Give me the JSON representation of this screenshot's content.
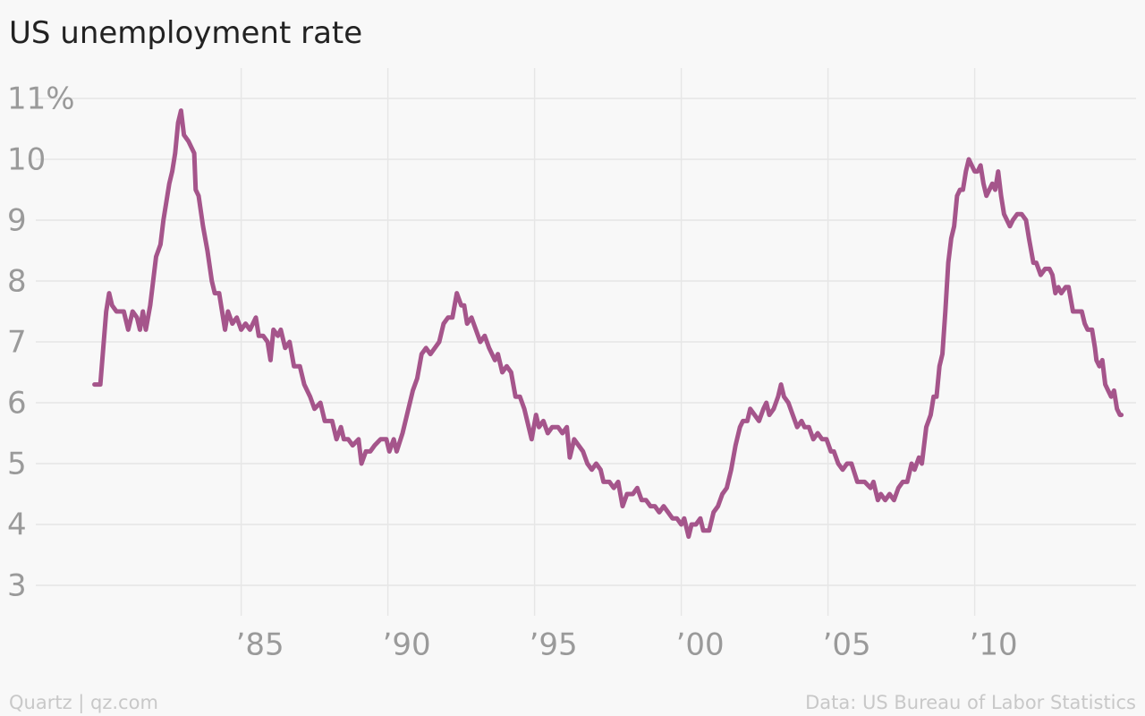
{
  "chart_data": {
    "type": "line",
    "title": "US unemployment rate",
    "credit": "Quartz | qz.com",
    "source": "Data: US Bureau of Labor Statistics",
    "color": "#a5558b",
    "grid": true,
    "xlim": [
      1978,
      2015.5
    ],
    "ylim": [
      2.5,
      11.5
    ],
    "xticks": [
      {
        "value": 1985,
        "label": "’85"
      },
      {
        "value": 1990,
        "label": "’90"
      },
      {
        "value": 1995,
        "label": "’95"
      },
      {
        "value": 2000,
        "label": "’00"
      },
      {
        "value": 2005,
        "label": "’05"
      },
      {
        "value": 2010,
        "label": "’10"
      }
    ],
    "yticks": [
      3,
      4,
      5,
      6,
      7,
      8,
      9,
      10,
      {
        "value": 11,
        "label": "11%"
      }
    ],
    "x": [
      1980.0,
      1980.2,
      1980.3,
      1980.4,
      1980.5,
      1980.6,
      1980.75,
      1981.0,
      1981.15,
      1981.3,
      1981.45,
      1981.55,
      1981.65,
      1981.75,
      1981.9,
      1982.0,
      1982.1,
      1982.25,
      1982.35,
      1982.45,
      1982.55,
      1982.65,
      1982.75,
      1982.85,
      1982.95,
      1983.05,
      1983.2,
      1983.4,
      1983.45,
      1983.55,
      1983.7,
      1983.85,
      1984.0,
      1984.1,
      1984.25,
      1984.35,
      1984.45,
      1984.55,
      1984.7,
      1984.85,
      1985.0,
      1985.15,
      1985.3,
      1985.5,
      1985.6,
      1985.75,
      1985.9,
      1986.0,
      1986.1,
      1986.25,
      1986.35,
      1986.5,
      1986.65,
      1986.8,
      1987.0,
      1987.15,
      1987.35,
      1987.5,
      1987.7,
      1987.85,
      1988.1,
      1988.25,
      1988.4,
      1988.5,
      1988.65,
      1988.8,
      1989.0,
      1989.1,
      1989.25,
      1989.4,
      1989.55,
      1989.75,
      1989.95,
      1990.05,
      1990.2,
      1990.3,
      1990.5,
      1990.7,
      1990.85,
      1991.0,
      1991.15,
      1991.3,
      1991.45,
      1991.6,
      1991.75,
      1991.9,
      1992.05,
      1992.2,
      1992.35,
      1992.5,
      1992.6,
      1992.7,
      1992.85,
      1993.0,
      1993.15,
      1993.3,
      1993.45,
      1993.65,
      1993.75,
      1993.9,
      1994.05,
      1994.2,
      1994.35,
      1994.5,
      1994.65,
      1994.8,
      1994.9,
      1995.05,
      1995.15,
      1995.3,
      1995.45,
      1995.6,
      1995.8,
      1995.95,
      1996.1,
      1996.2,
      1996.35,
      1996.5,
      1996.65,
      1996.8,
      1996.95,
      1997.1,
      1997.25,
      1997.35,
      1997.55,
      1997.7,
      1997.85,
      1998.0,
      1998.15,
      1998.35,
      1998.5,
      1998.65,
      1998.8,
      1998.95,
      1999.1,
      1999.25,
      1999.4,
      1999.55,
      1999.7,
      1999.85,
      2000.0,
      2000.1,
      2000.25,
      2000.35,
      2000.5,
      2000.65,
      2000.75,
      2000.95,
      2001.1,
      2001.25,
      2001.4,
      2001.55,
      2001.7,
      2001.85,
      2002.0,
      2002.1,
      2002.25,
      2002.35,
      2002.5,
      2002.65,
      2002.8,
      2002.9,
      2003.0,
      2003.15,
      2003.3,
      2003.4,
      2003.5,
      2003.65,
      2003.8,
      2003.95,
      2004.1,
      2004.2,
      2004.35,
      2004.5,
      2004.65,
      2004.8,
      2004.95,
      2005.1,
      2005.2,
      2005.35,
      2005.5,
      2005.65,
      2005.8,
      2006.0,
      2006.1,
      2006.25,
      2006.45,
      2006.55,
      2006.7,
      2006.8,
      2006.95,
      2007.1,
      2007.25,
      2007.4,
      2007.55,
      2007.7,
      2007.85,
      2007.95,
      2008.1,
      2008.2,
      2008.35,
      2008.5,
      2008.6,
      2008.7,
      2008.8,
      2008.9,
      2009.0,
      2009.1,
      2009.2,
      2009.3,
      2009.4,
      2009.5,
      2009.6,
      2009.7,
      2009.8,
      2009.9,
      2010.0,
      2010.1,
      2010.2,
      2010.3,
      2010.4,
      2010.5,
      2010.6,
      2010.7,
      2010.8,
      2010.9,
      2011.0,
      2011.1,
      2011.2,
      2011.3,
      2011.45,
      2011.6,
      2011.75,
      2011.85,
      2012.0,
      2012.1,
      2012.25,
      2012.4,
      2012.55,
      2012.65,
      2012.75,
      2012.85,
      2012.95,
      2013.1,
      2013.2,
      2013.35,
      2013.5,
      2013.65,
      2013.75,
      2013.85,
      2014.0,
      2014.1,
      2014.15,
      2014.25,
      2014.35,
      2014.45,
      2014.55,
      2014.65,
      2014.75,
      2014.85,
      2014.95,
      2015.0
    ],
    "values": [
      6.3,
      6.3,
      6.9,
      7.5,
      7.8,
      7.6,
      7.5,
      7.5,
      7.2,
      7.5,
      7.4,
      7.2,
      7.5,
      7.2,
      7.6,
      8.0,
      8.4,
      8.6,
      9.0,
      9.3,
      9.6,
      9.8,
      10.1,
      10.6,
      10.8,
      10.4,
      10.3,
      10.1,
      9.5,
      9.4,
      8.9,
      8.5,
      8.0,
      7.8,
      7.8,
      7.5,
      7.2,
      7.5,
      7.3,
      7.4,
      7.2,
      7.3,
      7.2,
      7.4,
      7.1,
      7.1,
      7.0,
      6.7,
      7.2,
      7.1,
      7.2,
      6.9,
      7.0,
      6.6,
      6.6,
      6.3,
      6.1,
      5.9,
      6.0,
      5.7,
      5.7,
      5.4,
      5.6,
      5.4,
      5.4,
      5.3,
      5.4,
      5.0,
      5.2,
      5.2,
      5.3,
      5.4,
      5.4,
      5.2,
      5.4,
      5.2,
      5.5,
      5.9,
      6.2,
      6.4,
      6.8,
      6.9,
      6.8,
      6.9,
      7.0,
      7.3,
      7.4,
      7.4,
      7.8,
      7.6,
      7.6,
      7.3,
      7.4,
      7.2,
      7.0,
      7.1,
      6.9,
      6.7,
      6.8,
      6.5,
      6.6,
      6.5,
      6.1,
      6.1,
      5.9,
      5.6,
      5.4,
      5.8,
      5.6,
      5.7,
      5.5,
      5.6,
      5.6,
      5.5,
      5.6,
      5.1,
      5.4,
      5.3,
      5.2,
      5.0,
      4.9,
      5.0,
      4.9,
      4.7,
      4.7,
      4.6,
      4.7,
      4.3,
      4.5,
      4.5,
      4.6,
      4.4,
      4.4,
      4.3,
      4.3,
      4.2,
      4.3,
      4.2,
      4.1,
      4.1,
      4.0,
      4.1,
      3.8,
      4.0,
      4.0,
      4.1,
      3.9,
      3.9,
      4.2,
      4.3,
      4.5,
      4.6,
      4.9,
      5.3,
      5.6,
      5.7,
      5.7,
      5.9,
      5.8,
      5.7,
      5.9,
      6.0,
      5.8,
      5.9,
      6.1,
      6.3,
      6.1,
      6.0,
      5.8,
      5.6,
      5.7,
      5.6,
      5.6,
      5.4,
      5.5,
      5.4,
      5.4,
      5.2,
      5.2,
      5.0,
      4.9,
      5.0,
      5.0,
      4.7,
      4.7,
      4.7,
      4.6,
      4.7,
      4.4,
      4.5,
      4.4,
      4.5,
      4.4,
      4.6,
      4.7,
      4.7,
      5.0,
      4.9,
      5.1,
      5.0,
      5.6,
      5.8,
      6.1,
      6.1,
      6.6,
      6.8,
      7.5,
      8.3,
      8.7,
      8.9,
      9.4,
      9.5,
      9.5,
      9.8,
      10.0,
      9.9,
      9.8,
      9.8,
      9.9,
      9.6,
      9.4,
      9.5,
      9.6,
      9.5,
      9.8,
      9.4,
      9.1,
      9.0,
      8.9,
      9.0,
      9.1,
      9.1,
      9.0,
      8.7,
      8.3,
      8.3,
      8.1,
      8.2,
      8.2,
      8.1,
      7.8,
      7.9,
      7.8,
      7.9,
      7.9,
      7.5,
      7.5,
      7.5,
      7.3,
      7.2,
      7.2,
      6.9,
      6.7,
      6.6,
      6.7,
      6.3,
      6.2,
      6.1,
      6.2,
      5.9,
      5.8,
      5.8
    ]
  }
}
